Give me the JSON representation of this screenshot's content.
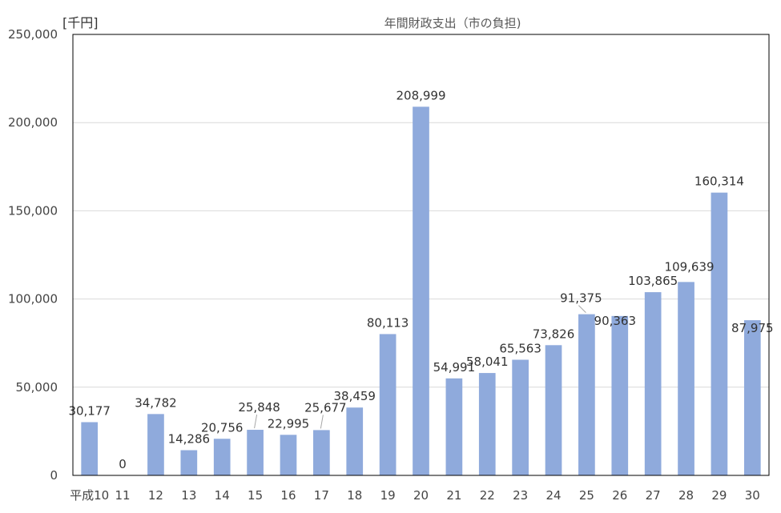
{
  "chart_data": {
    "type": "bar",
    "title": "年間財政支出（市の負担)",
    "unit_label": "[千円]",
    "xlabel": "",
    "ylabel": "",
    "categories": [
      "平成10",
      "11",
      "12",
      "13",
      "14",
      "15",
      "16",
      "17",
      "18",
      "19",
      "20",
      "21",
      "22",
      "23",
      "24",
      "25",
      "26",
      "27",
      "28",
      "29",
      "30"
    ],
    "values": [
      30177,
      0,
      34782,
      14286,
      20756,
      25848,
      22995,
      25677,
      38459,
      80113,
      208999,
      54991,
      58041,
      65563,
      73826,
      91375,
      90363,
      103865,
      109639,
      160314,
      87975
    ],
    "value_labels": [
      "30,177",
      "0",
      "34,782",
      "14,286",
      "20,756",
      "25,848",
      "22,995",
      "25,677",
      "38,459",
      "80,113",
      "208,999",
      "54,991",
      "58,041",
      "65,563",
      "73,826",
      "91,375",
      "90,363",
      "103,865",
      "109,639",
      "160,314",
      "87,975"
    ],
    "ylim": [
      0,
      250000
    ],
    "yticks": [
      0,
      50000,
      100000,
      150000,
      200000,
      250000
    ],
    "ytick_labels": [
      "0",
      "50,000",
      "100,000",
      "150,000",
      "200,000",
      "250,000"
    ],
    "grid": true,
    "legend": "none",
    "bar_color": "#8faadc"
  }
}
